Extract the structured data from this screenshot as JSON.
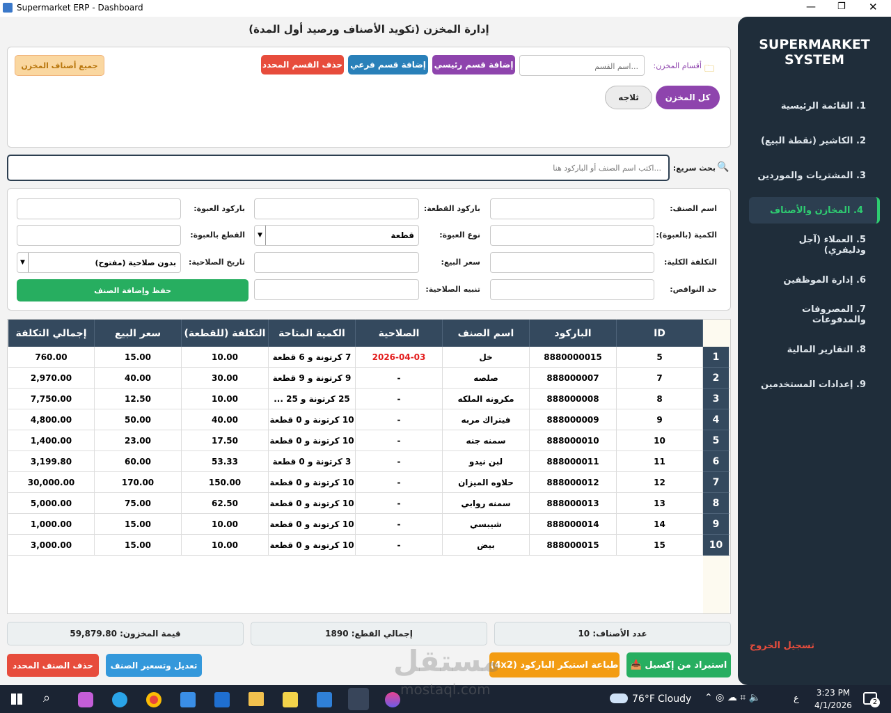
{
  "window": {
    "title": "Supermarket ERP - Dashboard"
  },
  "sidebar": {
    "brand": [
      "SUPERMARKET",
      "SYSTEM"
    ],
    "menu": [
      "1. القائمة الرئيسية",
      "2. الكاشير (نقطة البيع)",
      "3. المشتريات والموردين",
      "4. المخازن والأصناف",
      "5. العملاء (آجل ودليفري)",
      "6. إدارة الموظفين",
      "7. المصروفات والمدفوعات",
      "8. التقارير المالية",
      "9. إعدادات المستخدمين"
    ],
    "active": 3,
    "logout": "تسجيل الخروج"
  },
  "header": {
    "title": "إدارة المخزن (تكويد الأصناف ورصيد أول المدة)"
  },
  "sections": {
    "label": "أقسام المخزن:",
    "placeholder": "اسم القسم...",
    "add_main": "إضافة قسم رئيسي",
    "add_sub": "إضافة قسم فرعي",
    "delete": "حذف القسم المحدد",
    "all_items": "جميع أصناف المخزن",
    "chips": [
      "كل المخزن",
      "ثلاجه"
    ]
  },
  "search": {
    "label": "بحث سريع:",
    "placeholder": "اكتب اسم الصنف أو الباركود هنا..."
  },
  "form": {
    "labels": [
      [
        "اسم الصنف:",
        "باركود القطعة:",
        "باركود العبوة:"
      ],
      [
        "الكمية (بالعبوة):",
        "نوع العبوة:",
        "القطع بالعبوة:"
      ],
      [
        "التكلفة الكلية:",
        "سعر البيع:",
        "تاريخ الصلاحية:"
      ],
      [
        "حد النواقص:",
        "تنبيه الصلاحية:"
      ]
    ],
    "package_type": "قطعة",
    "expiry_option": "بدون صلاحية (مفتوح)",
    "save": "حفظ وإضافة الصنف"
  },
  "table": {
    "headers": [
      "ID",
      "الباركود",
      "اسم الصنف",
      "الصلاحية",
      "الكمية المتاحة",
      "التكلفة (للقطعة)",
      "سعر البيع",
      "إجمالي التكلفة"
    ],
    "row_numbers": [
      "1",
      "2",
      "3",
      "4",
      "5",
      "6",
      "7",
      "8",
      "9",
      "10"
    ],
    "rows": [
      [
        "5",
        "8880000015",
        "خل",
        "2026-04-03",
        "7 كرتونة و 6 قطعة",
        "10.00",
        "15.00",
        "760.00"
      ],
      [
        "7",
        "888000007",
        "صلصه",
        "-",
        "9 كرتونة و 9 قطعة",
        "30.00",
        "40.00",
        "2,970.00"
      ],
      [
        "8",
        "888000008",
        "مكرونه الملكه",
        "-",
        "25 كرتونة و 25 ...",
        "10.00",
        "12.50",
        "7,750.00"
      ],
      [
        "9",
        "888000009",
        "فيتراك مربه",
        "-",
        "10 كرتونة و 0 قطعة",
        "40.00",
        "50.00",
        "4,800.00"
      ],
      [
        "10",
        "888000010",
        "سمنه جنه",
        "-",
        "10 كرتونة و 0 قطعة",
        "17.50",
        "23.00",
        "1,400.00"
      ],
      [
        "11",
        "888000011",
        "لبن نيدو",
        "-",
        "3 كرتونة و 0 قطعة",
        "53.33",
        "60.00",
        "3,199.80"
      ],
      [
        "12",
        "888000012",
        "حلاوه الميزان",
        "-",
        "10 كرتونة و 0 قطعة",
        "150.00",
        "170.00",
        "30,000.00"
      ],
      [
        "13",
        "888000013",
        "سمنه روابي",
        "-",
        "10 كرتونة و 0 قطعة",
        "62.50",
        "75.00",
        "5,000.00"
      ],
      [
        "14",
        "888000014",
        "شيبسي",
        "-",
        "10 كرتونة و 0 قطعة",
        "10.00",
        "15.00",
        "1,000.00"
      ],
      [
        "15",
        "888000015",
        "بيض",
        "-",
        "10 كرتونة و 0 قطعة",
        "10.00",
        "15.00",
        "3,000.00"
      ]
    ]
  },
  "stats": [
    "عدد الأصناف: 10",
    "إجمالي القطع: 1890",
    "قيمة المخزون: 59,879.80"
  ],
  "actions": {
    "import": "استيراد من إكسيل",
    "print": "طباعة استيكر الباركود (4x2)",
    "edit": "تعديل وتسعير الصنف",
    "delete": "حذف الصنف المحدد"
  },
  "watermark": [
    "مستقل",
    "mostaql.com"
  ],
  "taskbar": {
    "weather_temp": "76°F",
    "weather": "Cloudy",
    "lang": "ع",
    "time": "3:23 PM",
    "date": "4/1/2026",
    "badge": "2"
  }
}
